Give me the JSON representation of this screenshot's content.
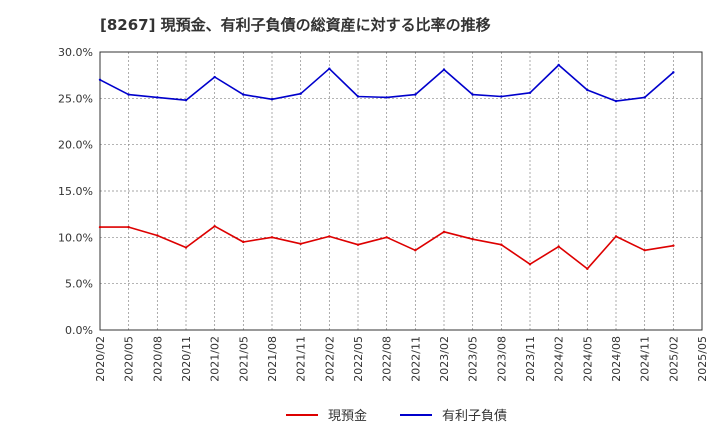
{
  "chart_data": {
    "type": "line",
    "title": "[8267]  現預金、有利子負債の総資産に対する比率の推移",
    "xlabel": "",
    "ylabel": "",
    "ylim": [
      0,
      30
    ],
    "y_ticks": [
      0,
      5,
      10,
      15,
      20,
      25,
      30
    ],
    "y_tick_labels": [
      "0.0%",
      "5.0%",
      "10.0%",
      "15.0%",
      "20.0%",
      "25.0%",
      "30.0%"
    ],
    "x_tick_labels": [
      "2020/02",
      "2020/05",
      "2020/08",
      "2020/11",
      "2021/02",
      "2021/05",
      "2021/08",
      "2021/11",
      "2022/02",
      "2022/05",
      "2022/08",
      "2022/11",
      "2023/02",
      "2023/05",
      "2023/08",
      "2023/11",
      "2024/02",
      "2024/05",
      "2024/08",
      "2024/11",
      "2025/02",
      "2025/05"
    ],
    "categories": [
      "2020/02",
      "2020/05",
      "2020/08",
      "2020/11",
      "2021/02",
      "2021/05",
      "2021/08",
      "2021/11",
      "2022/02",
      "2022/05",
      "2022/08",
      "2022/11",
      "2023/02",
      "2023/05",
      "2023/08",
      "2023/11",
      "2024/02",
      "2024/05",
      "2024/08",
      "2024/11",
      "2025/02"
    ],
    "series": [
      {
        "name": "現預金",
        "color": "#dd0000",
        "values": [
          11.1,
          11.1,
          10.2,
          8.9,
          11.2,
          9.5,
          10.0,
          9.3,
          10.1,
          9.2,
          10.0,
          8.6,
          10.6,
          9.8,
          9.2,
          7.1,
          9.0,
          6.6,
          10.1,
          8.6,
          9.1
        ]
      },
      {
        "name": "有利子負債",
        "color": "#0000cc",
        "values": [
          27.0,
          25.4,
          25.1,
          24.8,
          27.3,
          25.4,
          24.9,
          25.5,
          28.2,
          25.2,
          25.1,
          25.4,
          28.1,
          25.4,
          25.2,
          25.6,
          28.6,
          25.9,
          24.7,
          25.1,
          27.8
        ]
      }
    ],
    "grid": true,
    "legend": "bottom-center"
  }
}
